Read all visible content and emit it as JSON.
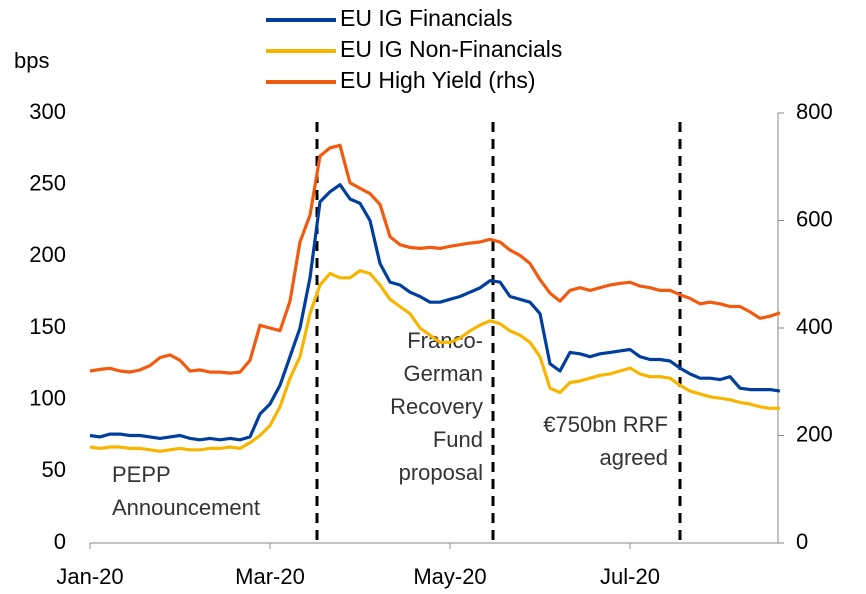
{
  "chart_data": {
    "type": "line",
    "ylabel": "bps",
    "categories": [
      "Jan-20",
      null,
      null,
      null,
      null,
      null,
      null,
      null,
      null,
      null,
      null,
      null,
      null,
      null,
      null,
      null,
      null,
      null,
      "Mar-20",
      null,
      null,
      null,
      null,
      null,
      null,
      null,
      null,
      null,
      null,
      null,
      null,
      null,
      null,
      null,
      null,
      null,
      "May-20",
      null,
      null,
      null,
      null,
      null,
      null,
      null,
      null,
      null,
      null,
      null,
      null,
      null,
      null,
      null,
      null,
      null,
      "Jul-20",
      null,
      null,
      null,
      null,
      null,
      null,
      null,
      null,
      null,
      null,
      null,
      null,
      null,
      null,
      null
    ],
    "series": [
      {
        "name": "EU IG Financials",
        "color": "#003f9e",
        "values": [
          75,
          74,
          76,
          76,
          75,
          75,
          74,
          73,
          74,
          75,
          73,
          72,
          73,
          72,
          73,
          72,
          74,
          90,
          97,
          110,
          130,
          150,
          185,
          238,
          245,
          250,
          240,
          237,
          225,
          195,
          182,
          180,
          175,
          172,
          168,
          168,
          170,
          172,
          175,
          178,
          183,
          182,
          172,
          170,
          168,
          160,
          125,
          120,
          133,
          132,
          130,
          132,
          133,
          134,
          135,
          130,
          128,
          128,
          127,
          122,
          118,
          115,
          115,
          114,
          116,
          108,
          107,
          107,
          107,
          106
        ]
      },
      {
        "name": "EU IG Non-Financials",
        "color": "#f7b500",
        "values": [
          67,
          66,
          67,
          67,
          66,
          66,
          65,
          64,
          65,
          66,
          65,
          65,
          66,
          66,
          67,
          66,
          70,
          75,
          82,
          95,
          115,
          130,
          160,
          180,
          188,
          185,
          185,
          190,
          188,
          180,
          170,
          165,
          160,
          150,
          145,
          140,
          140,
          143,
          148,
          152,
          155,
          153,
          148,
          145,
          140,
          130,
          108,
          105,
          112,
          113,
          115,
          117,
          118,
          120,
          122,
          118,
          116,
          116,
          115,
          110,
          106,
          104,
          102,
          101,
          100,
          98,
          97,
          95,
          94,
          94
        ]
      },
      {
        "name": "EU High Yield (rhs)",
        "color": "#f25a0f",
        "axis": "y2",
        "values": [
          320,
          323,
          325,
          320,
          318,
          322,
          330,
          345,
          350,
          340,
          320,
          322,
          318,
          318,
          316,
          318,
          340,
          405,
          400,
          395,
          450,
          560,
          610,
          720,
          735,
          740,
          670,
          660,
          650,
          630,
          570,
          555,
          550,
          548,
          550,
          548,
          552,
          555,
          558,
          560,
          565,
          560,
          545,
          535,
          520,
          490,
          465,
          450,
          470,
          475,
          470,
          475,
          480,
          483,
          485,
          478,
          475,
          470,
          470,
          462,
          455,
          445,
          448,
          445,
          440,
          440,
          430,
          418,
          422,
          428
        ]
      }
    ],
    "ylim": [
      0,
      300
    ],
    "yticks": [
      0,
      50,
      100,
      150,
      200,
      250,
      300
    ],
    "y2lim": [
      0,
      800
    ],
    "y2ticks": [
      0,
      200,
      400,
      600,
      800
    ],
    "annotations": [
      [
        "PEPP",
        "Announcement"
      ],
      [
        "Franco-",
        "German",
        "Recovery",
        "Fund",
        "proposal"
      ],
      [
        "€750bn RRF",
        "agreed"
      ]
    ],
    "legend": "top"
  }
}
